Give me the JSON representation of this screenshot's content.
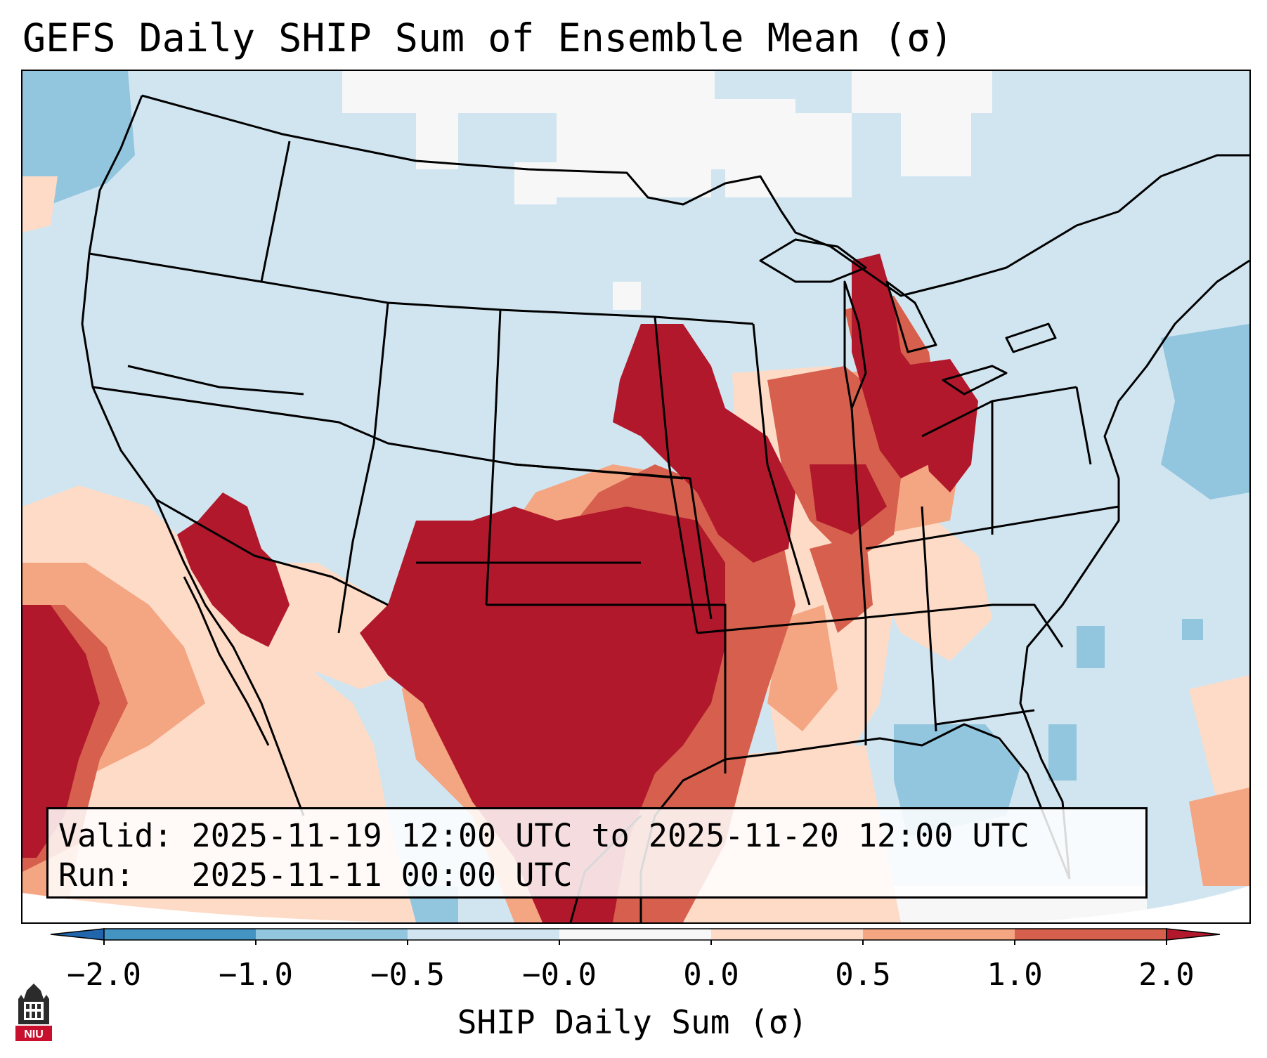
{
  "title": "GEFS Daily SHIP Sum of Ensemble Mean (σ)",
  "info_box": {
    "valid_label": "Valid:",
    "valid_value": "2025-11-19 12:00 UTC to 2025-11-20 12:00 UTC",
    "run_label": "Run:",
    "run_value": "2025-11-11 00:00 UTC"
  },
  "colorbar": {
    "title": "SHIP Daily Sum (σ)",
    "tick_labels": [
      "−2.0",
      "−1.0",
      "−0.5",
      "−0.0",
      "0.0",
      "0.5",
      "1.0",
      "2.0"
    ],
    "bins": [
      {
        "range": "< -2.0",
        "color": "#2166ac"
      },
      {
        "range": "-2.0 to -1.0",
        "color": "#4393c3"
      },
      {
        "range": "-1.0 to -0.5",
        "color": "#92c5de"
      },
      {
        "range": "-0.5 to -0.0",
        "color": "#d1e5f0"
      },
      {
        "range": "-0.0 to 0.0",
        "color": "#f7f7f7"
      },
      {
        "range": "0.0 to 0.5",
        "color": "#fddbc7"
      },
      {
        "range": "0.5 to 1.0",
        "color": "#f4a582"
      },
      {
        "range": "1.0 to 2.0",
        "color": "#d6604d"
      },
      {
        "range": "> 2.0",
        "color": "#b2182b"
      }
    ]
  },
  "logo": {
    "text": "NIU",
    "icon": "university-tower-icon",
    "color": "#c8102e"
  }
}
